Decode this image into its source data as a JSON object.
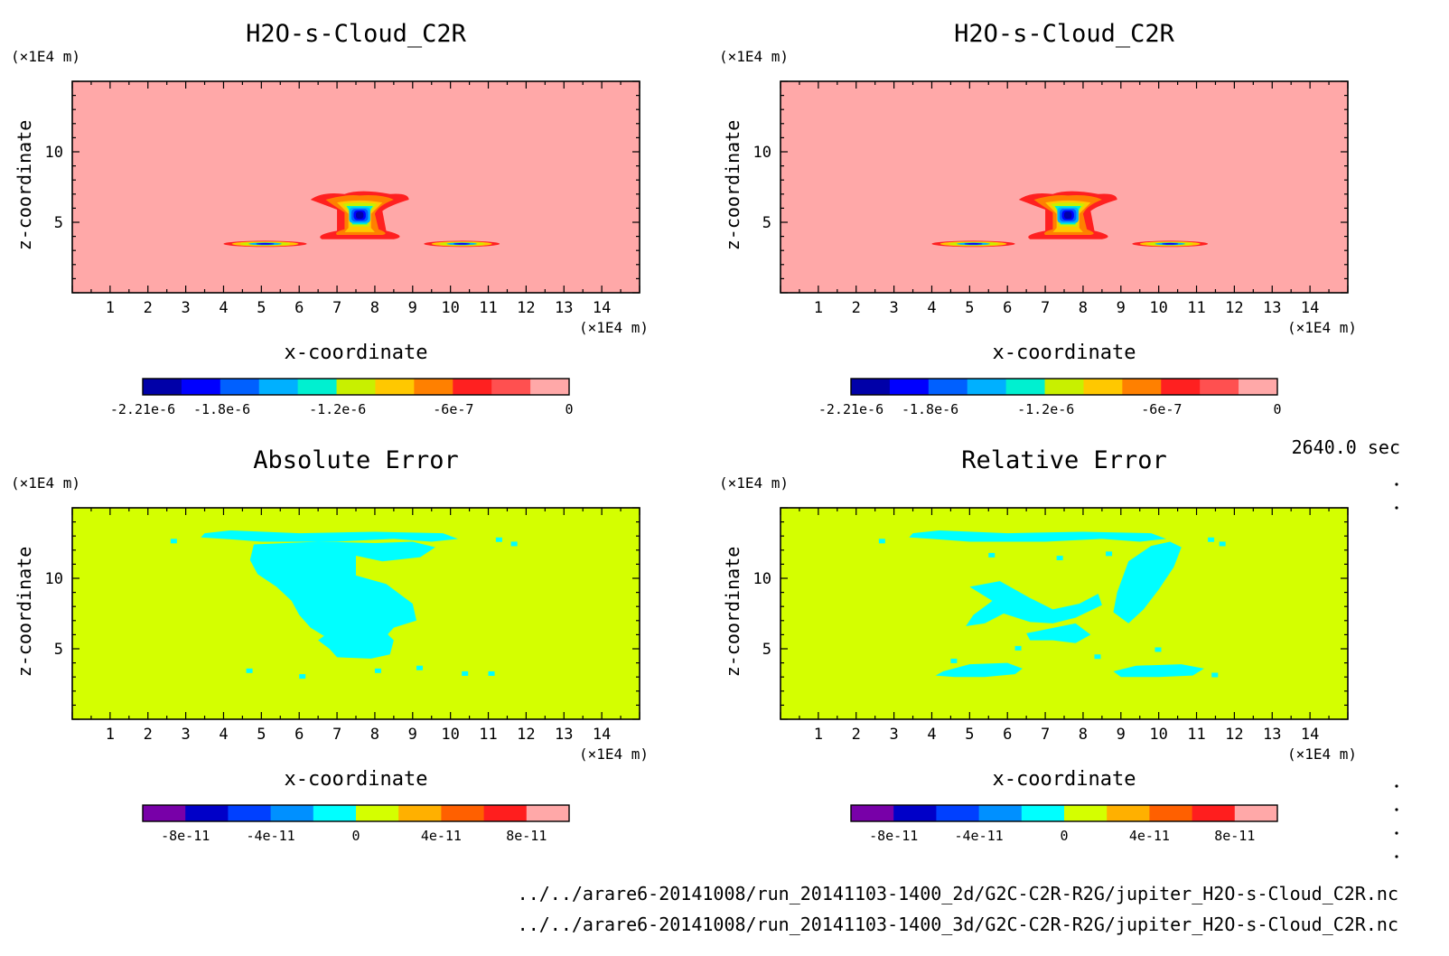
{
  "colors": {
    "main_bg": "#ffa8a8",
    "err_bg": "#d4ff00",
    "err_patch": "#00ffff",
    "main_scale": [
      "#0000a8",
      "#0000ff",
      "#0060ff",
      "#00b0ff",
      "#00f0d0",
      "#c8f000",
      "#ffc800",
      "#ff8000",
      "#ff2020",
      "#ff5050",
      "#ffa8a8"
    ],
    "err_scale": [
      "#7800a8",
      "#0000c8",
      "#0040ff",
      "#0090ff",
      "#00ffff",
      "#d4ff00",
      "#ffb000",
      "#ff6000",
      "#ff1e1e",
      "#ffa8a8"
    ]
  },
  "time_label": "2640.0 sec",
  "footer": {
    "path_2d": "../../arare6-20141008/run_20141103-1400_2d/G2C-C2R-R2G/jupiter_H2O-s-Cloud_C2R.nc",
    "path_3d": "../../arare6-20141008/run_20141103-1400_3d/G2C-C2R-R2G/jupiter_H2O-s-Cloud_C2R.nc"
  },
  "chart_data": [
    {
      "type": "heatmap",
      "title": "H2O-s-Cloud_C2R",
      "xlabel": "x-coordinate",
      "ylabel": "z-coordinate",
      "x_unit": "(×1E4 m)",
      "y_unit": "(×1E4 m)",
      "xlim": [
        0,
        15
      ],
      "ylim": [
        0,
        15
      ],
      "x_ticks": [
        1,
        2,
        3,
        4,
        5,
        6,
        7,
        8,
        9,
        10,
        11,
        12,
        13,
        14
      ],
      "y_ticks": [
        5,
        10
      ],
      "colorbar_labels": [
        "-2.21e-6",
        "-1.8e-6",
        "-1.2e-6",
        "-6e-7",
        "0"
      ],
      "colorbar_range": [
        -2.21e-06,
        0
      ]
    },
    {
      "type": "heatmap",
      "title": "H2O-s-Cloud_C2R",
      "xlabel": "x-coordinate",
      "ylabel": "z-coordinate",
      "x_unit": "(×1E4 m)",
      "y_unit": "(×1E4 m)",
      "xlim": [
        0,
        15
      ],
      "ylim": [
        0,
        15
      ],
      "x_ticks": [
        1,
        2,
        3,
        4,
        5,
        6,
        7,
        8,
        9,
        10,
        11,
        12,
        13,
        14
      ],
      "y_ticks": [
        5,
        10
      ],
      "colorbar_labels": [
        "-2.21e-6",
        "-1.8e-6",
        "-1.2e-6",
        "-6e-7",
        "0"
      ],
      "colorbar_range": [
        -2.21e-06,
        0
      ]
    },
    {
      "type": "heatmap",
      "title": "Absolute Error",
      "xlabel": "x-coordinate",
      "ylabel": "z-coordinate",
      "x_unit": "(×1E4 m)",
      "y_unit": "(×1E4 m)",
      "xlim": [
        0,
        15
      ],
      "ylim": [
        0,
        15
      ],
      "x_ticks": [
        1,
        2,
        3,
        4,
        5,
        6,
        7,
        8,
        9,
        10,
        11,
        12,
        13,
        14
      ],
      "y_ticks": [
        5,
        10
      ],
      "colorbar_labels": [
        "-8e-11",
        "-4e-11",
        "0",
        "4e-11",
        "8e-11"
      ],
      "colorbar_range": [
        -1e-10,
        1e-10
      ]
    },
    {
      "type": "heatmap",
      "title": "Relative Error",
      "xlabel": "x-coordinate",
      "ylabel": "z-coordinate",
      "x_unit": "(×1E4 m)",
      "y_unit": "(×1E4 m)",
      "xlim": [
        0,
        15
      ],
      "ylim": [
        0,
        15
      ],
      "x_ticks": [
        1,
        2,
        3,
        4,
        5,
        6,
        7,
        8,
        9,
        10,
        11,
        12,
        13,
        14
      ],
      "y_ticks": [
        5,
        10
      ],
      "colorbar_labels": [
        "-8e-11",
        "-4e-11",
        "0",
        "4e-11",
        "8e-11"
      ],
      "colorbar_range": [
        -1e-10,
        1e-10
      ]
    }
  ]
}
